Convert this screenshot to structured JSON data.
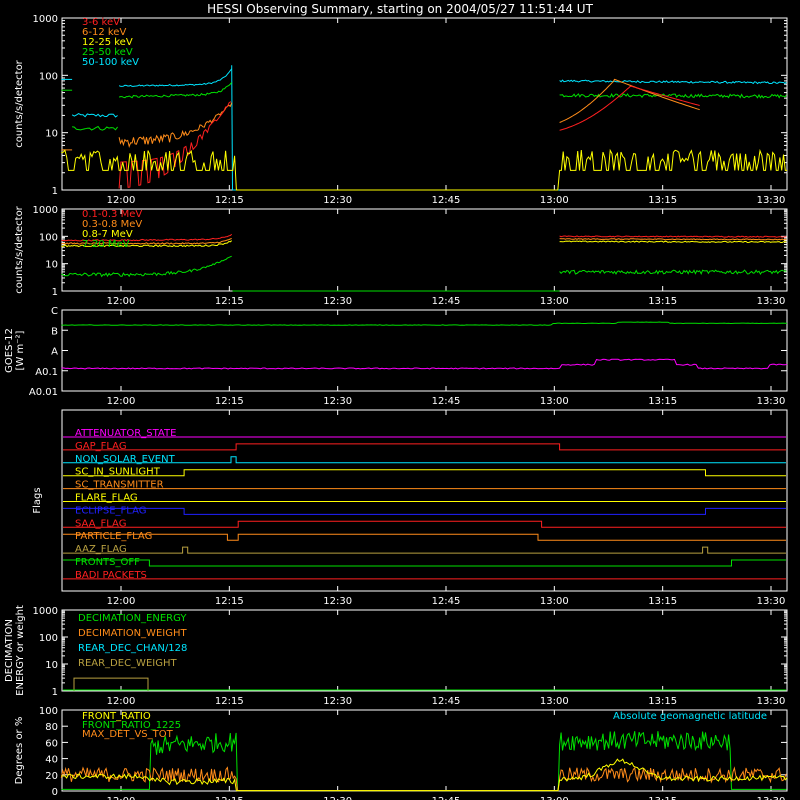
{
  "chart_data": {
    "type": "line",
    "title": "HESSI Observing Summary, starting on 2004/05/27 11:51:44 UT",
    "time_start": "11:51:44",
    "x_ticks": [
      "12:00",
      "12:15",
      "12:30",
      "12:45",
      "13:00",
      "13:15",
      "13:30"
    ],
    "colors": {
      "white": "#ffffff",
      "red": "#ff2020",
      "orange": "#ff8c1a",
      "yellow": "#ffff00",
      "green": "#00e000",
      "cyan": "#00e5ff",
      "magenta": "#ff00ff",
      "blue": "#2020ff",
      "olive": "#b8a040"
    },
    "panels": [
      {
        "id": "xray-low",
        "ylabel": "counts/s/detector",
        "scale": "log",
        "yticks": [
          "1",
          "10",
          "100",
          "1000"
        ],
        "legend": [
          {
            "name": "3-6 keV",
            "color": "#ff2020"
          },
          {
            "name": "6-12 keV",
            "color": "#ff8c1a"
          },
          {
            "name": "12-25 keV",
            "color": "#ffff00"
          },
          {
            "name": "25-50 keV",
            "color": "#00e000"
          },
          {
            "name": "50-100 keV",
            "color": "#00e5ff"
          }
        ]
      },
      {
        "id": "xray-high",
        "ylabel": "counts/s/detector",
        "scale": "log",
        "yticks": [
          "1",
          "10",
          "100",
          "1000"
        ],
        "legend": [
          {
            "name": "0.1-0.3 MeV",
            "color": "#ff2020"
          },
          {
            "name": "0.3-0.8 MeV",
            "color": "#ff8c1a"
          },
          {
            "name": "0.8-7 MeV",
            "color": "#ffff00"
          },
          {
            "name": "7-20 MeV",
            "color": "#00e000"
          }
        ]
      },
      {
        "id": "goes",
        "ylabel": "GOES-12",
        "ylabel2": "[W m⁻²]",
        "yticks": [
          "A0.01",
          "A0.1",
          "A",
          "B",
          "C"
        ]
      },
      {
        "id": "flags",
        "ylabel": "Flags",
        "legend": [
          {
            "name": "ATTENUATOR_STATE",
            "color": "#ff00ff"
          },
          {
            "name": "GAP_FLAG",
            "color": "#ff2020"
          },
          {
            "name": "NON_SOLAR_EVENT",
            "color": "#00e5ff"
          },
          {
            "name": "SC_IN_SUNLIGHT",
            "color": "#ffff00"
          },
          {
            "name": "SC_TRANSMITTER",
            "color": "#ff8c1a"
          },
          {
            "name": "FLARE_FLAG",
            "color": "#ffff00"
          },
          {
            "name": "ECLIPSE_FLAG",
            "color": "#2020ff"
          },
          {
            "name": "SAA_FLAG",
            "color": "#ff2020"
          },
          {
            "name": "PARTICLE_FLAG",
            "color": "#ff8c1a"
          },
          {
            "name": "AAZ_FLAG",
            "color": "#b8a040"
          },
          {
            "name": "FRONTS_OFF",
            "color": "#00e000"
          },
          {
            "name": "BADI PACKETS",
            "color": "#ff2020"
          }
        ]
      },
      {
        "id": "decimation",
        "ylabel": "DECIMATION",
        "ylabel2": "ENERGY or weight",
        "scale": "log",
        "yticks": [
          "1",
          "10",
          "100",
          "1000"
        ],
        "legend": [
          {
            "name": "DECIMATION_ENERGY",
            "color": "#00e000"
          },
          {
            "name": "DECIMATION_WEIGHT",
            "color": "#ff8c1a"
          },
          {
            "name": "REAR_DEC_CHAN/128",
            "color": "#00e5ff"
          },
          {
            "name": "REAR_DEC_WEIGHT",
            "color": "#b8a040"
          }
        ]
      },
      {
        "id": "ratios",
        "ylabel": "Degrees or %",
        "yticks": [
          "0",
          "20",
          "40",
          "60",
          "80",
          "100"
        ],
        "legend": [
          {
            "name": "FRONT_RATIO",
            "color": "#ffff00"
          },
          {
            "name": "FRONT_RATIO_1225",
            "color": "#00e000"
          },
          {
            "name": "MAX_DET_VS_TOT",
            "color": "#ff8c1a"
          }
        ],
        "annotation": {
          "text": "Absolute geomagnetic latitude",
          "color": "#00e5ff"
        }
      }
    ]
  }
}
